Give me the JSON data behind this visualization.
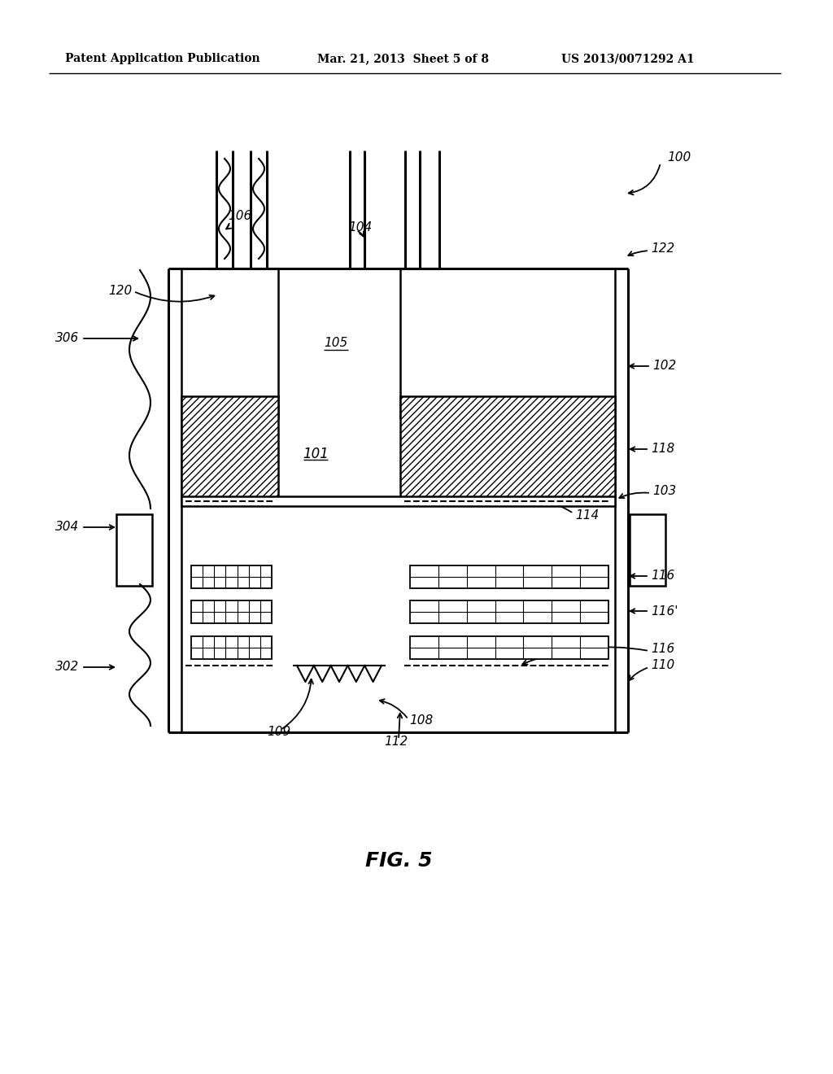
{
  "bg": "#ffffff",
  "black": "#000000",
  "header_left": "Patent Application Publication",
  "header_mid": "Mar. 21, 2013  Sheet 5 of 8",
  "header_right": "US 2013/0071292 A1",
  "fig_label": "FIG. 5",
  "r100": "100",
  "r101": "101",
  "r102": "102",
  "r103": "103",
  "r104": "104",
  "r105": "105",
  "r106": "106",
  "r108": "108",
  "r109": "109",
  "r110": "110",
  "r112": "112",
  "r114": "114",
  "r116": "116",
  "r116p": "116'",
  "r118": "118",
  "r120": "120",
  "r122": "122",
  "r302": "302",
  "r304": "304",
  "r306": "306"
}
